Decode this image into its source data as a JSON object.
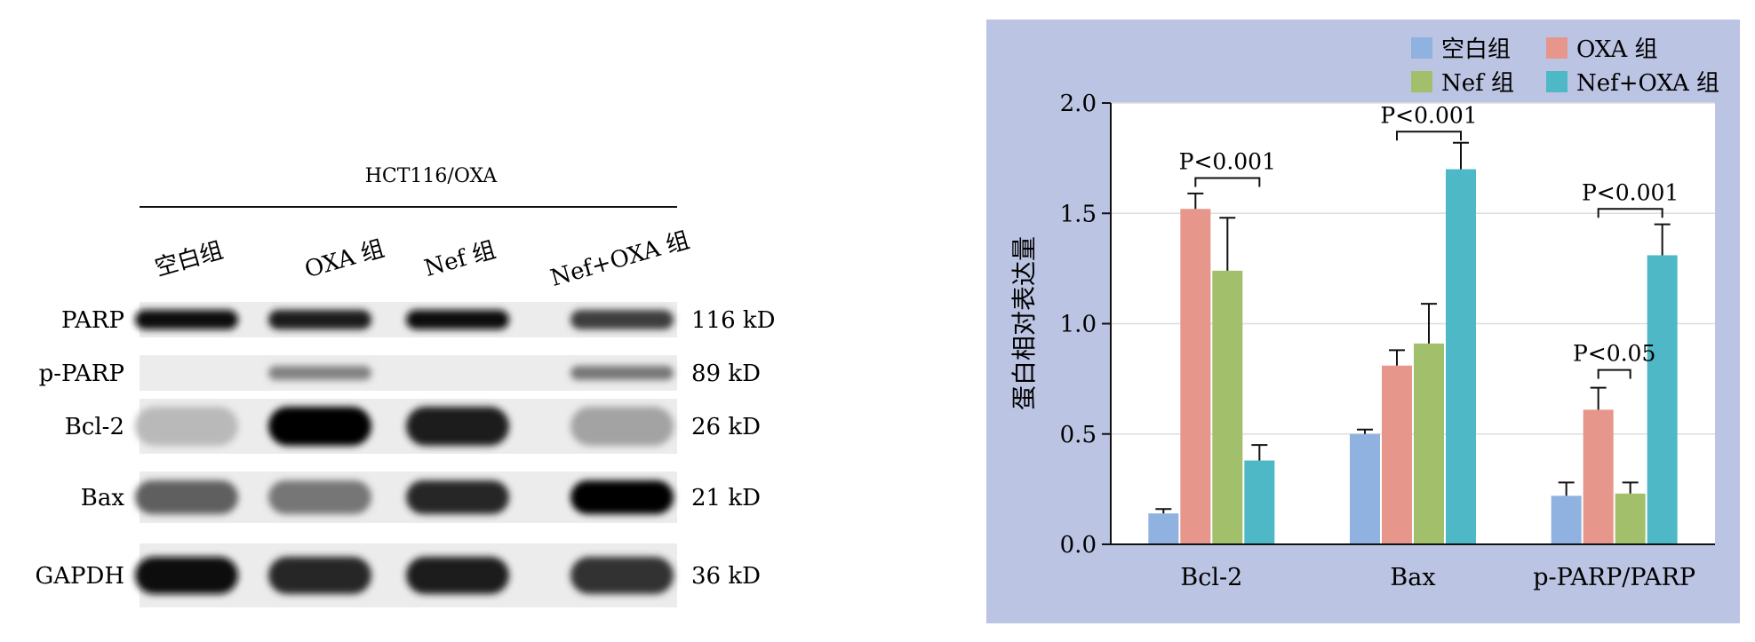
{
  "blot": {
    "header": "HCT116/OXA",
    "lanes": [
      "空白组",
      "OXA 组",
      "Nef 组",
      "Nef+OXA 组"
    ],
    "proteins": [
      {
        "name": "PARP",
        "size": "116 kD",
        "intensity": [
          0.95,
          0.9,
          0.95,
          0.75
        ]
      },
      {
        "name": "p-PARP",
        "size": "89 kD",
        "intensity": [
          0.0,
          0.45,
          0.0,
          0.5
        ]
      },
      {
        "name": "Bcl-2",
        "size": "26 kD",
        "intensity": [
          0.2,
          1.0,
          0.9,
          0.3
        ]
      },
      {
        "name": "Bax",
        "size": "21 kD",
        "intensity": [
          0.6,
          0.5,
          0.85,
          1.0
        ]
      },
      {
        "name": "GAPDH",
        "size": "36 kD",
        "intensity": [
          0.95,
          0.85,
          0.9,
          0.8
        ]
      }
    ]
  },
  "chart_data": {
    "type": "bar",
    "ylabel": "蛋白相对表达量",
    "categories": [
      "Bcl-2",
      "Bax",
      "p-PARP/PARP"
    ],
    "ylim": [
      0,
      2.0
    ],
    "yticks": [
      "0.0",
      "0.5",
      "1.0",
      "1.5",
      "2.0"
    ],
    "grid": true,
    "legend_position": "top-right",
    "series": [
      {
        "name": "空白组",
        "color": "#8fb2e0",
        "values": [
          0.14,
          0.5,
          0.22
        ],
        "errors": [
          0.02,
          0.02,
          0.06
        ]
      },
      {
        "name": "OXA 组",
        "color": "#e6968a",
        "values": [
          1.52,
          0.81,
          0.61
        ],
        "errors": [
          0.07,
          0.07,
          0.1
        ]
      },
      {
        "name": "Nef 组",
        "color": "#a2c06c",
        "values": [
          1.24,
          0.91,
          0.23
        ],
        "errors": [
          0.24,
          0.18,
          0.05
        ]
      },
      {
        "name": "Nef+OXA 组",
        "color": "#4fb8c6",
        "values": [
          0.38,
          1.7,
          1.31
        ],
        "errors": [
          0.07,
          0.12,
          0.14
        ]
      }
    ],
    "annotations": [
      {
        "text": "P<0.001",
        "category": 0,
        "from": 1,
        "to": 3,
        "y": 1.66
      },
      {
        "text": "P<0.001",
        "category": 1,
        "from": 1,
        "to": 3,
        "y": 1.87
      },
      {
        "text": "P<0.001",
        "category": 2,
        "from": 1,
        "to": 3,
        "y": 1.52
      },
      {
        "text": "P<0.05",
        "category": 2,
        "from": 1,
        "to": 2,
        "y": 0.79
      }
    ],
    "panel_color": "#bbc4e2"
  }
}
